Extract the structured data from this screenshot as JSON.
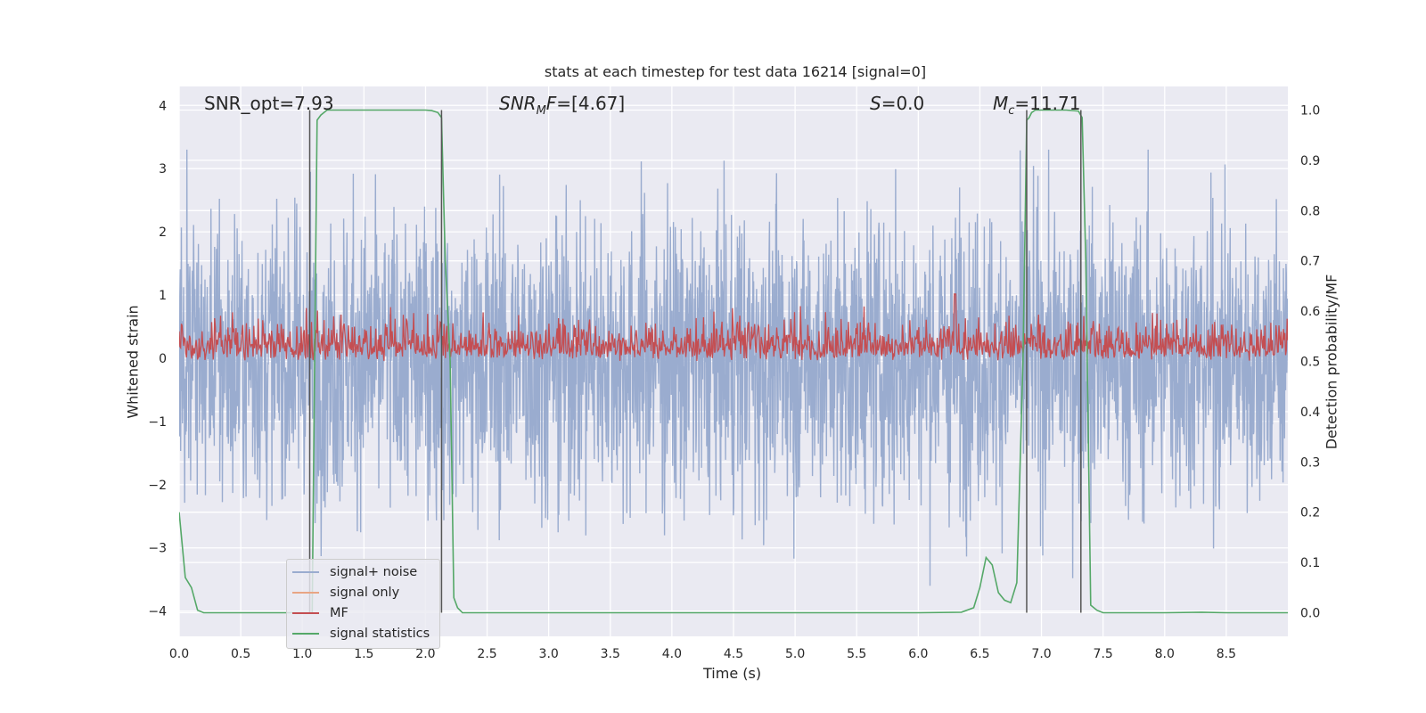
{
  "chart_data": {
    "type": "line",
    "title": "stats at each timestep for test data 16214 [signal=0]",
    "xlabel": "Time (s)",
    "ylabel": "Whitened strain",
    "ylabel_right": "Detection probability/MF",
    "xlim": [
      0.0,
      9.0
    ],
    "ylim": [
      -4.4,
      4.3
    ],
    "ylim_right": [
      -0.047,
      1.047
    ],
    "x_ticks": [
      "0.0",
      "0.5",
      "1.0",
      "1.5",
      "2.0",
      "2.5",
      "3.0",
      "3.5",
      "4.0",
      "4.5",
      "5.0",
      "5.5",
      "6.0",
      "6.5",
      "7.0",
      "7.5",
      "8.0",
      "8.5"
    ],
    "y_ticks": [
      "4",
      "3",
      "2",
      "1",
      "0",
      "−1",
      "−2",
      "−3",
      "−4"
    ],
    "y_ticks_right": [
      "1.0",
      "0.9",
      "0.8",
      "0.7",
      "0.6",
      "0.5",
      "0.4",
      "0.3",
      "0.2",
      "0.1",
      "0.0"
    ],
    "annotations": {
      "snr_opt": "SNR_opt=7.93",
      "snr_mf_prefix": "SNR",
      "snr_mf_sub": "M",
      "snr_mf_suffix": "F",
      "snr_mf_value": "=[4.67]",
      "s_symbol": "S",
      "s_value": "=0.0",
      "mc_symbol": "M",
      "mc_sub": "c",
      "mc_value": "=11.71"
    },
    "legend": {
      "location": "lower-left",
      "entries": [
        "signal+ noise",
        "signal only",
        "MF",
        "signal statistics"
      ]
    },
    "colors": {
      "noise": "#9aaccf",
      "signal_only": "#dd8452",
      "mf": "#c44e52",
      "signal_statistics": "#55a868",
      "axes_bg": "#eaeaf2",
      "grid": "#ffffff",
      "vline": "#555555"
    },
    "series": [
      {
        "name": "signal+ noise",
        "axis": "left",
        "description": "whitened strain, noise only, amplitude roughly -3.5 to 3.3"
      },
      {
        "name": "signal only",
        "axis": "left",
        "values": []
      },
      {
        "name": "MF",
        "axis": "right",
        "description": "matched-filter output fluctuating between 0.50 and 0.63, peak ~0.63 near t=6.3"
      },
      {
        "name": "signal statistics",
        "axis": "right",
        "x": [
          0.0,
          0.05,
          0.1,
          0.15,
          0.2,
          0.3,
          0.5,
          0.8,
          1.0,
          1.05,
          1.08,
          1.1,
          1.12,
          1.15,
          1.2,
          1.4,
          1.6,
          1.8,
          2.0,
          2.05,
          2.1,
          2.13,
          2.16,
          2.2,
          2.23,
          2.26,
          2.3,
          2.5,
          3.0,
          4.0,
          5.0,
          6.0,
          6.35,
          6.45,
          6.5,
          6.55,
          6.6,
          6.65,
          6.7,
          6.75,
          6.8,
          6.85,
          6.88,
          6.9,
          6.92,
          6.95,
          7.0,
          7.1,
          7.2,
          7.3,
          7.33,
          7.36,
          7.4,
          7.45,
          7.5,
          8.0,
          8.3,
          8.5,
          9.0
        ],
        "values": [
          0.2,
          0.07,
          0.05,
          0.005,
          0.0,
          0.0,
          0.0,
          0.0,
          0.0,
          0.0,
          0.0,
          0.5,
          0.98,
          0.99,
          1.0,
          1.0,
          1.0,
          1.0,
          1.0,
          0.999,
          0.995,
          0.985,
          0.7,
          0.5,
          0.03,
          0.01,
          0.0,
          0.0,
          0.0,
          0.0,
          0.0,
          0.0,
          0.001,
          0.01,
          0.05,
          0.11,
          0.095,
          0.04,
          0.025,
          0.02,
          0.06,
          0.5,
          0.98,
          0.985,
          0.995,
          1.0,
          1.0,
          1.0,
          1.0,
          0.998,
          0.985,
          0.7,
          0.015,
          0.005,
          0.0,
          0.0,
          0.001,
          0.0,
          0.0
        ]
      }
    ],
    "vertical_lines": [
      1.06,
      2.13,
      6.88,
      7.32
    ]
  }
}
